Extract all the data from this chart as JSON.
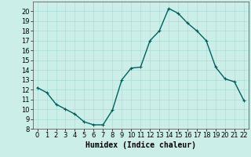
{
  "x": [
    0,
    1,
    2,
    3,
    4,
    5,
    6,
    7,
    8,
    9,
    10,
    11,
    12,
    13,
    14,
    15,
    16,
    17,
    18,
    19,
    20,
    21,
    22
  ],
  "y": [
    12.2,
    11.7,
    10.5,
    10.0,
    9.5,
    8.7,
    8.4,
    8.4,
    9.9,
    13.0,
    14.2,
    14.3,
    17.0,
    18.0,
    20.3,
    19.8,
    18.8,
    18.0,
    17.0,
    14.3,
    13.1,
    12.8,
    10.9
  ],
  "line_color": "#006060",
  "marker": "+",
  "marker_size": 3.5,
  "linewidth": 1.0,
  "bg_color": "#cceee8",
  "grid_color": "#aaddd8",
  "xlabel": "Humidex (Indice chaleur)",
  "xlabel_fontsize": 7,
  "tick_fontsize": 6,
  "ylim": [
    8,
    21
  ],
  "xlim": [
    -0.5,
    22.5
  ],
  "yticks": [
    8,
    9,
    10,
    11,
    12,
    13,
    14,
    15,
    16,
    17,
    18,
    19,
    20
  ],
  "xticks": [
    0,
    1,
    2,
    3,
    4,
    5,
    6,
    7,
    8,
    9,
    10,
    11,
    12,
    13,
    14,
    15,
    16,
    17,
    18,
    19,
    20,
    21,
    22
  ]
}
